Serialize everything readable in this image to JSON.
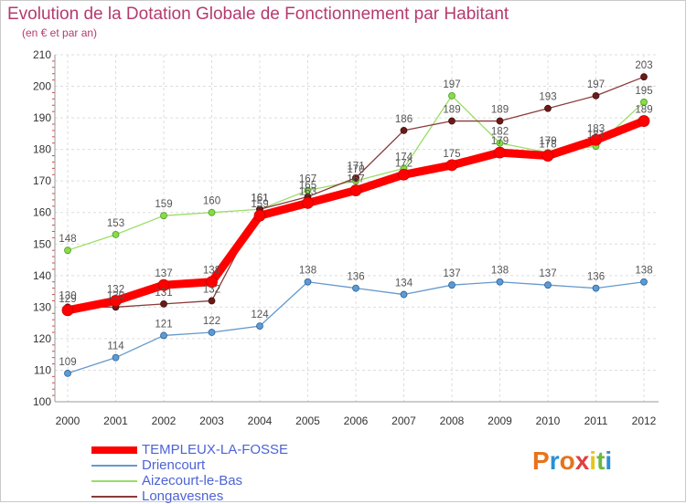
{
  "header": {
    "title": "Evolution de la Dotation Globale de Fonctionnement par Habitant",
    "subtitle": "(en € et par an)"
  },
  "logo": {
    "text": "Proxiti",
    "colors": [
      "#e8731a",
      "#2a8fd6",
      "#e8731a",
      "#e04040",
      "#e8c51a",
      "#6bb843",
      "#2a8fd6"
    ]
  },
  "chart_data": {
    "type": "line",
    "title": "Evolution de la Dotation Globale de Fonctionnement par Habitant",
    "subtitle": "(en € et par an)",
    "xlabel": "",
    "ylabel": "",
    "x": [
      "2000",
      "2001",
      "2002",
      "2003",
      "2004",
      "2005",
      "2006",
      "2007",
      "2008",
      "2009",
      "2010",
      "2011",
      "2012"
    ],
    "ylim": [
      100,
      210
    ],
    "yticks": [
      100,
      110,
      120,
      130,
      140,
      150,
      160,
      170,
      180,
      190,
      200,
      210
    ],
    "grid": true,
    "legend": "bottom-left",
    "series": [
      {
        "name": "TEMPLEUX-LA-FOSSE",
        "color": "#ff0000",
        "values": [
          129,
          132,
          137,
          138,
          159,
          163,
          167,
          172,
          175,
          179,
          178,
          183,
          189
        ]
      },
      {
        "name": "Driencourt",
        "color": "#6699cc",
        "values": [
          109,
          114,
          121,
          122,
          124,
          138,
          136,
          134,
          137,
          138,
          137,
          136,
          138
        ]
      },
      {
        "name": "Aizecourt-le-Bas",
        "color": "#99dd66",
        "values": [
          148,
          153,
          159,
          160,
          161,
          167,
          170,
          174,
          197,
          182,
          179,
          181,
          195
        ]
      },
      {
        "name": "Longavesnes",
        "color": "#8b3a3a",
        "values": [
          130,
          130,
          131,
          132,
          161,
          165,
          171,
          186,
          189,
          189,
          193,
          197,
          203
        ]
      }
    ]
  }
}
